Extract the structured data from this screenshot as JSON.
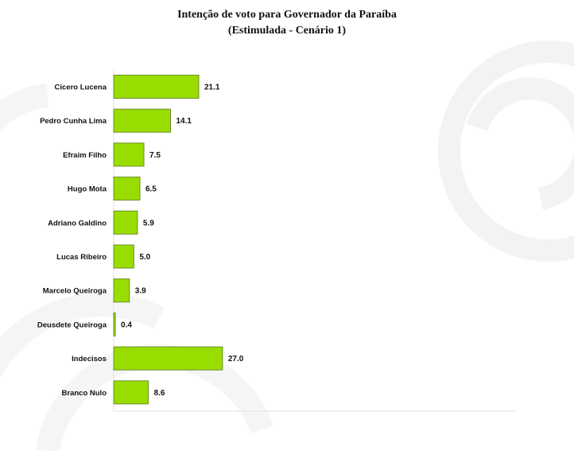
{
  "chart_data": {
    "type": "bar",
    "orientation": "horizontal",
    "title": "Intenção de voto para Governador da Paraíba",
    "subtitle": "(Estimulada - Cenário 1)",
    "categories": [
      "Cicero Lucena",
      "Pedro Cunha Lima",
      "Efraim Filho",
      "Hugo Mota",
      "Adriano Galdino",
      "Lucas Ribeiro",
      "Marcelo Queiroga",
      "Deusdete Queiroga",
      "Indecisos",
      "Branco Nulo"
    ],
    "values": [
      21.1,
      14.1,
      7.5,
      6.5,
      5.9,
      5.0,
      3.9,
      0.4,
      27.0,
      8.6
    ],
    "value_labels": [
      "21.1",
      "14.1",
      "7.5",
      "6.5",
      "5.9",
      "5.0",
      "3.9",
      "0.4",
      "27.0",
      "8.6"
    ],
    "xlabel": "",
    "ylabel": "",
    "xlim": [
      0,
      100
    ],
    "grid": false,
    "legend": "none",
    "bar_color": "#99dd00",
    "bar_edge_color": "#6b8f2a"
  }
}
